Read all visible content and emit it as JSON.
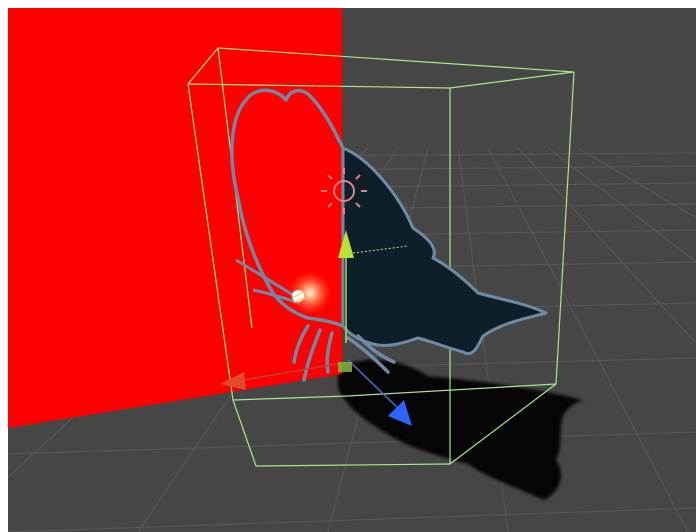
{
  "scene": {
    "background_color": "#464646",
    "grid_color": "#5a5a5a",
    "plane_color": "#ff0000",
    "bounds_color": "#a6e88a",
    "butterfly_fill": "#0f1f2a",
    "butterfly_outline": "#6f8aa5",
    "shadow_color": "#000000",
    "icons": [
      "directional-light-icon",
      "point-light-icon",
      "move-gizmo-y-arrow",
      "move-gizmo-z-arrow",
      "move-gizmo-x-arrow",
      "move-gizmo-center-handle"
    ]
  }
}
